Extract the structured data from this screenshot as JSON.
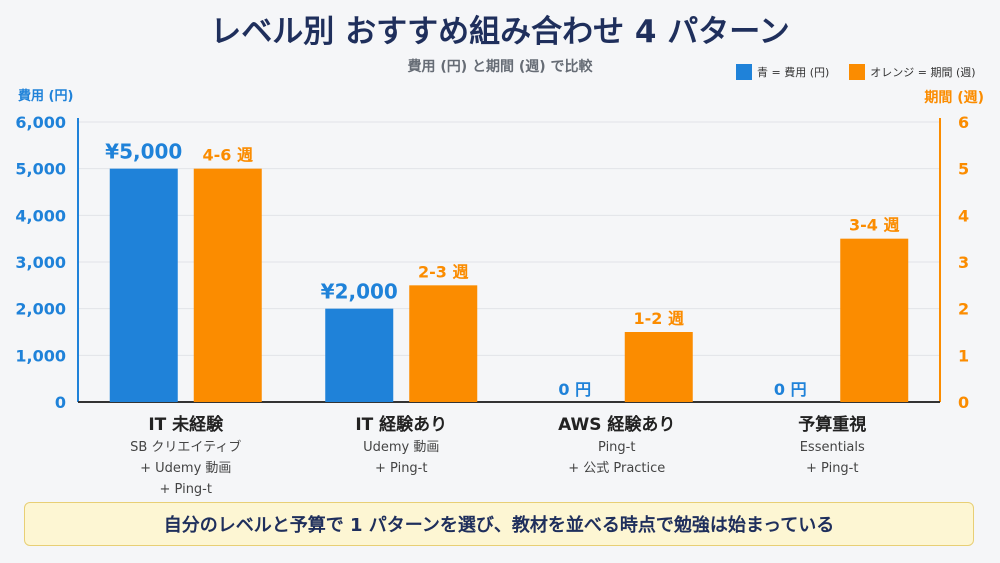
{
  "title": "レベル別 おすすめ組み合わせ 4 パターン",
  "subtitle": "費用 (円) と期間 (週) で比較",
  "legend": {
    "blue_label": "青 = 費用 (円)",
    "orange_label": "オレンジ = 期間 (週)"
  },
  "colors": {
    "blue": "#1f82d9",
    "orange": "#fb8c00",
    "navy": "#1f2f5c"
  },
  "chart_data": {
    "type": "bar",
    "categories": [
      "IT 未経験",
      "IT 経験あり",
      "AWS 経験あり",
      "予算重視"
    ],
    "category_sublabels": [
      [
        "SB クリエイティブ",
        "+ Udemy 動画",
        "+ Ping-t"
      ],
      [
        "Udemy 動画",
        "+ Ping-t"
      ],
      [
        "Ping-t",
        "+ 公式 Practice"
      ],
      [
        "Essentials",
        "+ Ping-t"
      ]
    ],
    "series": [
      {
        "name": "費用 (円)",
        "axis": "left",
        "values": [
          5000,
          2000,
          0,
          0
        ],
        "data_labels": [
          "¥5,000",
          "¥2,000",
          "0 円",
          "0 円"
        ]
      },
      {
        "name": "期間 (週)",
        "axis": "right",
        "values": [
          5,
          2.5,
          1.5,
          3.5
        ],
        "data_labels": [
          "4-6 週",
          "2-3 週",
          "1-2 週",
          "3-4 週"
        ]
      }
    ],
    "y_left": {
      "label": "費用 (円)",
      "range": [
        0,
        6000
      ],
      "ticks": [
        0,
        1000,
        2000,
        3000,
        4000,
        5000,
        6000
      ],
      "tick_labels": [
        "0",
        "1,000",
        "2,000",
        "3,000",
        "4,000",
        "5,000",
        "6,000"
      ]
    },
    "y_right": {
      "label": "期間 (週)",
      "range": [
        0,
        6
      ],
      "ticks": [
        0,
        1,
        2,
        3,
        4,
        5,
        6
      ],
      "tick_labels": [
        "0",
        "1",
        "2",
        "3",
        "4",
        "5",
        "6"
      ]
    },
    "grid": true,
    "legend_position": "top-right"
  },
  "callout": "自分のレベルと予算で 1 パターンを選び、教材を並べる時点で勉強は始まっている"
}
